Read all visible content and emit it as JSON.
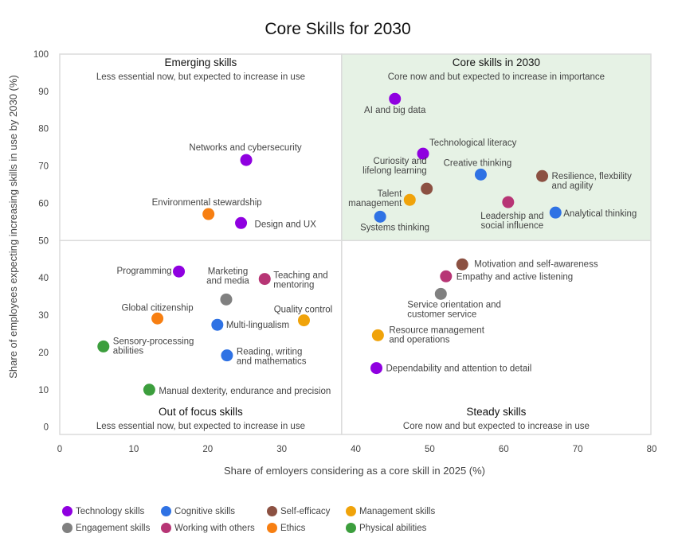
{
  "chart_data": {
    "type": "scatter",
    "title": "Core Skills for 2030",
    "xlabel": "Share of emloyers considering as a core skill in 2025 (%)",
    "ylabel": "Share of employees expecting increasing skills in use by 2030 (%)",
    "xlim": [
      0,
      80
    ],
    "ylim": [
      -2,
      100
    ],
    "x_ticks": [
      0,
      10,
      20,
      30,
      40,
      50,
      60,
      70,
      80
    ],
    "y_ticks": [
      0,
      10,
      20,
      30,
      40,
      50,
      60,
      70,
      80,
      90,
      100
    ],
    "grid": false,
    "quadrant_split": {
      "x": 38.1,
      "y": 50
    },
    "quadrants": [
      {
        "id": "top-left",
        "title": "Emerging skills",
        "subtitle": "Less essential now, but expected to increase in use",
        "fill": "#ffffff"
      },
      {
        "id": "top-right",
        "title": "Core skills in 2030",
        "subtitle": "Core now and but expected to increase in importance",
        "fill": "#e6f2e5"
      },
      {
        "id": "bottom-left",
        "title": "Out of focus skills",
        "subtitle": "Less essential now, but expected to increase in use",
        "fill": "#ffffff"
      },
      {
        "id": "bottom-right",
        "title": "Steady skills",
        "subtitle": "Core now and but expected to increase in use",
        "fill": "#ffffff"
      }
    ],
    "categories": [
      {
        "name": "Technology skills",
        "color": "#8f00e0"
      },
      {
        "name": "Cognitive skills",
        "color": "#2f72e4"
      },
      {
        "name": "Self-efficacy",
        "color": "#8c5142"
      },
      {
        "name": "Management skills",
        "color": "#f0a30a"
      },
      {
        "name": "Engagement skills",
        "color": "#808080"
      },
      {
        "name": "Working with others",
        "color": "#b73575"
      },
      {
        "name": "Ethics",
        "color": "#f77f12"
      },
      {
        "name": "Physical abilities",
        "color": "#3c9e3d"
      }
    ],
    "legend_position": "bottom-left",
    "points": [
      {
        "label": "AI and big data",
        "category": "Technology skills",
        "x": 45.3,
        "y": 88.0
      },
      {
        "label": "Technological literacy",
        "category": "Technology skills",
        "x": 49.1,
        "y": 73.3
      },
      {
        "label": "Curiosity and lifelong learning",
        "category": "Self-efficacy",
        "x": 49.6,
        "y": 63.9
      },
      {
        "label": "Creative thinking",
        "category": "Cognitive skills",
        "x": 56.9,
        "y": 67.7
      },
      {
        "label": "Resilience, flexbility and agility",
        "category": "Self-efficacy",
        "x": 65.2,
        "y": 67.3
      },
      {
        "label": "Talent management",
        "category": "Management skills",
        "x": 47.3,
        "y": 60.9
      },
      {
        "label": "Leadership and social influence",
        "category": "Working with others",
        "x": 60.6,
        "y": 60.3
      },
      {
        "label": "Systems thinking",
        "category": "Cognitive skills",
        "x": 43.3,
        "y": 56.4
      },
      {
        "label": "Analytical thinking",
        "category": "Cognitive skills",
        "x": 67.0,
        "y": 57.5
      },
      {
        "label": "Networks and cybersecurity",
        "category": "Technology skills",
        "x": 25.2,
        "y": 71.6
      },
      {
        "label": "Environmental stewardship",
        "category": "Ethics",
        "x": 20.1,
        "y": 57.1
      },
      {
        "label": "Design and UX",
        "category": "Technology skills",
        "x": 24.5,
        "y": 54.7
      },
      {
        "label": "Programming",
        "category": "Technology skills",
        "x": 16.1,
        "y": 41.7
      },
      {
        "label": "Teaching and mentoring",
        "category": "Working with others",
        "x": 27.7,
        "y": 39.7
      },
      {
        "label": "Marketing and media",
        "category": "Engagement skills",
        "x": 22.5,
        "y": 34.2
      },
      {
        "label": "Global citizenship",
        "category": "Ethics",
        "x": 13.2,
        "y": 29.1
      },
      {
        "label": "Multi-lingualism",
        "category": "Cognitive skills",
        "x": 21.3,
        "y": 27.4
      },
      {
        "label": "Quality control",
        "category": "Management skills",
        "x": 33.0,
        "y": 28.6
      },
      {
        "label": "Sensory-processing abilities",
        "category": "Physical abilities",
        "x": 5.9,
        "y": 21.6
      },
      {
        "label": "Reading, writing and mathematics",
        "category": "Cognitive skills",
        "x": 22.6,
        "y": 19.2
      },
      {
        "label": "Manual dexterity, endurance and precision",
        "category": "Physical abilities",
        "x": 12.1,
        "y": 10.0
      },
      {
        "label": "Motivation and self-awareness",
        "category": "Self-efficacy",
        "x": 54.4,
        "y": 43.6
      },
      {
        "label": "Empathy and active listening",
        "category": "Working with others",
        "x": 52.2,
        "y": 40.4
      },
      {
        "label": "Service orientation and customer service",
        "category": "Engagement skills",
        "x": 51.5,
        "y": 35.7
      },
      {
        "label": "Resource management and operations",
        "category": "Management skills",
        "x": 43.0,
        "y": 24.6
      },
      {
        "label": "Dependability and attention to detail",
        "category": "Technology skills",
        "x": 42.8,
        "y": 15.8
      }
    ]
  }
}
